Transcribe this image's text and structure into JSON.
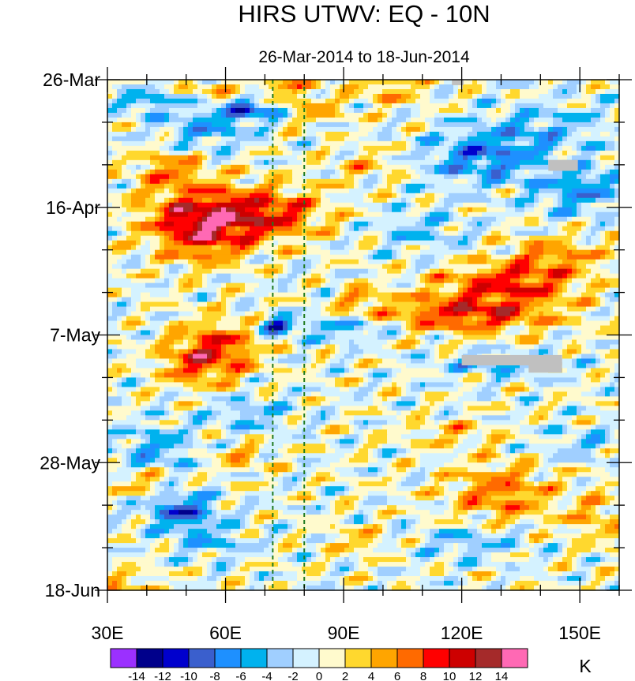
{
  "chart_data": {
    "type": "heatmap",
    "title": "HIRS UTWV: EQ - 10N",
    "subtitle": "26-Mar-2014 to 18-Jun-2014",
    "x_axis": {
      "range": [
        30,
        160
      ],
      "ticks": [
        30,
        60,
        90,
        120,
        150
      ],
      "tick_labels": [
        "30E",
        "60E",
        "90E",
        "120E",
        "150E"
      ],
      "minor_step": 10
    },
    "y_axis": {
      "range_days": [
        0,
        84
      ],
      "reversed": true,
      "ticks_days": [
        0,
        21,
        42,
        63,
        84
      ],
      "tick_labels": [
        "26-Mar",
        "16-Apr",
        "7-May",
        "28-May",
        "18-Jun"
      ],
      "minor_step_days": 7
    },
    "reference_lines_lon": [
      72,
      80
    ],
    "colorbar": {
      "unit": "K",
      "levels": [
        -14,
        -12,
        -10,
        -8,
        -6,
        -4,
        -2,
        0,
        2,
        4,
        6,
        8,
        10,
        12,
        14
      ],
      "label_values": [
        "-14",
        "-12",
        "-10",
        "-8",
        "-6",
        "-4",
        "-2",
        "0",
        "2",
        "4",
        "6",
        "8",
        "10",
        "12",
        "14"
      ],
      "colors": [
        "#9b30ff",
        "#00008b",
        "#0000cd",
        "#3a5fcd",
        "#1e90ff",
        "#00b2ee",
        "#a0cfff",
        "#d4f2ff",
        "#fffacd",
        "#ffd82e",
        "#ffa500",
        "#ff6a00",
        "#ff0000",
        "#cd0000",
        "#a52a2a",
        "#ff69b4"
      ]
    },
    "missing_color": "#c0c0c0",
    "features": [
      {
        "lon": 46,
        "day": 15,
        "amp": 6,
        "sx": 6,
        "sy": 2.2
      },
      {
        "lon": 56,
        "day": 22.5,
        "amp": 11.5,
        "sx": 11,
        "sy": 3.3
      },
      {
        "lon": 74,
        "day": 22,
        "amp": 6,
        "sx": 9,
        "sy": 3
      },
      {
        "lon": 54,
        "day": 27,
        "amp": 5,
        "sx": 7,
        "sy": 3
      },
      {
        "lon": 58,
        "day": 44.5,
        "amp": 9,
        "sx": 7,
        "sy": 3.2
      },
      {
        "lon": 50,
        "day": 47,
        "amp": 4.5,
        "sx": 5,
        "sy": 2.5
      },
      {
        "lon": 122,
        "day": 38.5,
        "amp": 9.5,
        "sx": 15,
        "sy": 2.1
      },
      {
        "lon": 132,
        "day": 33.5,
        "amp": 8.5,
        "sx": 12,
        "sy": 2.2
      },
      {
        "lon": 143,
        "day": 29,
        "amp": 5.5,
        "sx": 9,
        "sy": 2.2
      },
      {
        "lon": 94,
        "day": 36,
        "amp": 4.5,
        "sx": 4,
        "sy": 1.6
      },
      {
        "lon": 75,
        "day": 1,
        "amp": 5,
        "sx": 5,
        "sy": 1.8
      },
      {
        "lon": 57,
        "day": 1.5,
        "amp": 4,
        "sx": 4,
        "sy": 1.5
      },
      {
        "lon": 102,
        "day": 1.5,
        "amp": 4.5,
        "sx": 6,
        "sy": 1.8
      },
      {
        "lon": 82,
        "day": 5,
        "amp": 4,
        "sx": 6,
        "sy": 1.6
      },
      {
        "lon": 96,
        "day": 14,
        "amp": 3.5,
        "sx": 6,
        "sy": 1.8
      },
      {
        "lon": 130,
        "day": 68,
        "amp": 6.5,
        "sx": 9,
        "sy": 3.5
      },
      {
        "lon": 154,
        "day": 72,
        "amp": 4,
        "sx": 6,
        "sy": 3
      },
      {
        "lon": 118,
        "day": 58,
        "amp": 3.5,
        "sx": 8,
        "sy": 1.5
      },
      {
        "lon": 40,
        "day": 66,
        "amp": 5,
        "sx": 5,
        "sy": 1.5
      },
      {
        "lon": 64,
        "day": 62,
        "amp": 4,
        "sx": 5,
        "sy": 1.5
      },
      {
        "lon": 36,
        "day": 83,
        "amp": 4,
        "sx": 5,
        "sy": 1.5
      },
      {
        "lon": 94,
        "day": 76,
        "amp": 3.5,
        "sx": 6,
        "sy": 1.5
      },
      {
        "lon": 67,
        "day": 5,
        "amp": -8,
        "sx": 6,
        "sy": 1.3
      },
      {
        "lon": 55,
        "day": 8,
        "amp": -5,
        "sx": 8,
        "sy": 2.5
      },
      {
        "lon": 40,
        "day": 3.5,
        "amp": -5,
        "sx": 5,
        "sy": 1.5
      },
      {
        "lon": 73,
        "day": 40.5,
        "amp": -10,
        "sx": 3,
        "sy": 1.1
      },
      {
        "lon": 90,
        "day": 41,
        "amp": -5,
        "sx": 9,
        "sy": 1.3
      },
      {
        "lon": 125,
        "day": 13,
        "amp": -7,
        "sx": 10,
        "sy": 3
      },
      {
        "lon": 150,
        "day": 18,
        "amp": -6,
        "sx": 8,
        "sy": 3
      },
      {
        "lon": 140,
        "day": 8,
        "amp": -4,
        "sx": 12,
        "sy": 3
      },
      {
        "lon": 110,
        "day": 25,
        "amp": -3.5,
        "sx": 8,
        "sy": 2.5
      },
      {
        "lon": 49,
        "day": 71,
        "amp": -9,
        "sx": 6,
        "sy": 2.2
      },
      {
        "lon": 42,
        "day": 61,
        "amp": -5,
        "sx": 7,
        "sy": 3
      },
      {
        "lon": 56,
        "day": 76,
        "amp": -4,
        "sx": 6,
        "sy": 2
      },
      {
        "lon": 66,
        "day": 55,
        "amp": -4,
        "sx": 8,
        "sy": 2
      },
      {
        "lon": 122,
        "day": 76,
        "amp": -4,
        "sx": 10,
        "sy": 2
      },
      {
        "lon": 150,
        "day": 60,
        "amp": -3,
        "sx": 8,
        "sy": 2
      },
      {
        "lon": 128,
        "day": 47,
        "amp": -3.5,
        "sx": 12,
        "sy": 1.5
      }
    ],
    "missing_regions": [
      {
        "lon_range": [
          117.5,
          120.5
        ],
        "day_range": [
          0,
          0.9
        ]
      },
      {
        "lon_range": [
          142,
          149.5
        ],
        "day_range": [
          13.2,
          15
        ]
      },
      {
        "lon_range": [
          120,
          145.5
        ],
        "day_range": [
          45.3,
          47
        ]
      },
      {
        "lon_range": [
          137,
          145.5
        ],
        "day_range": [
          46.5,
          48.2
        ]
      }
    ]
  }
}
